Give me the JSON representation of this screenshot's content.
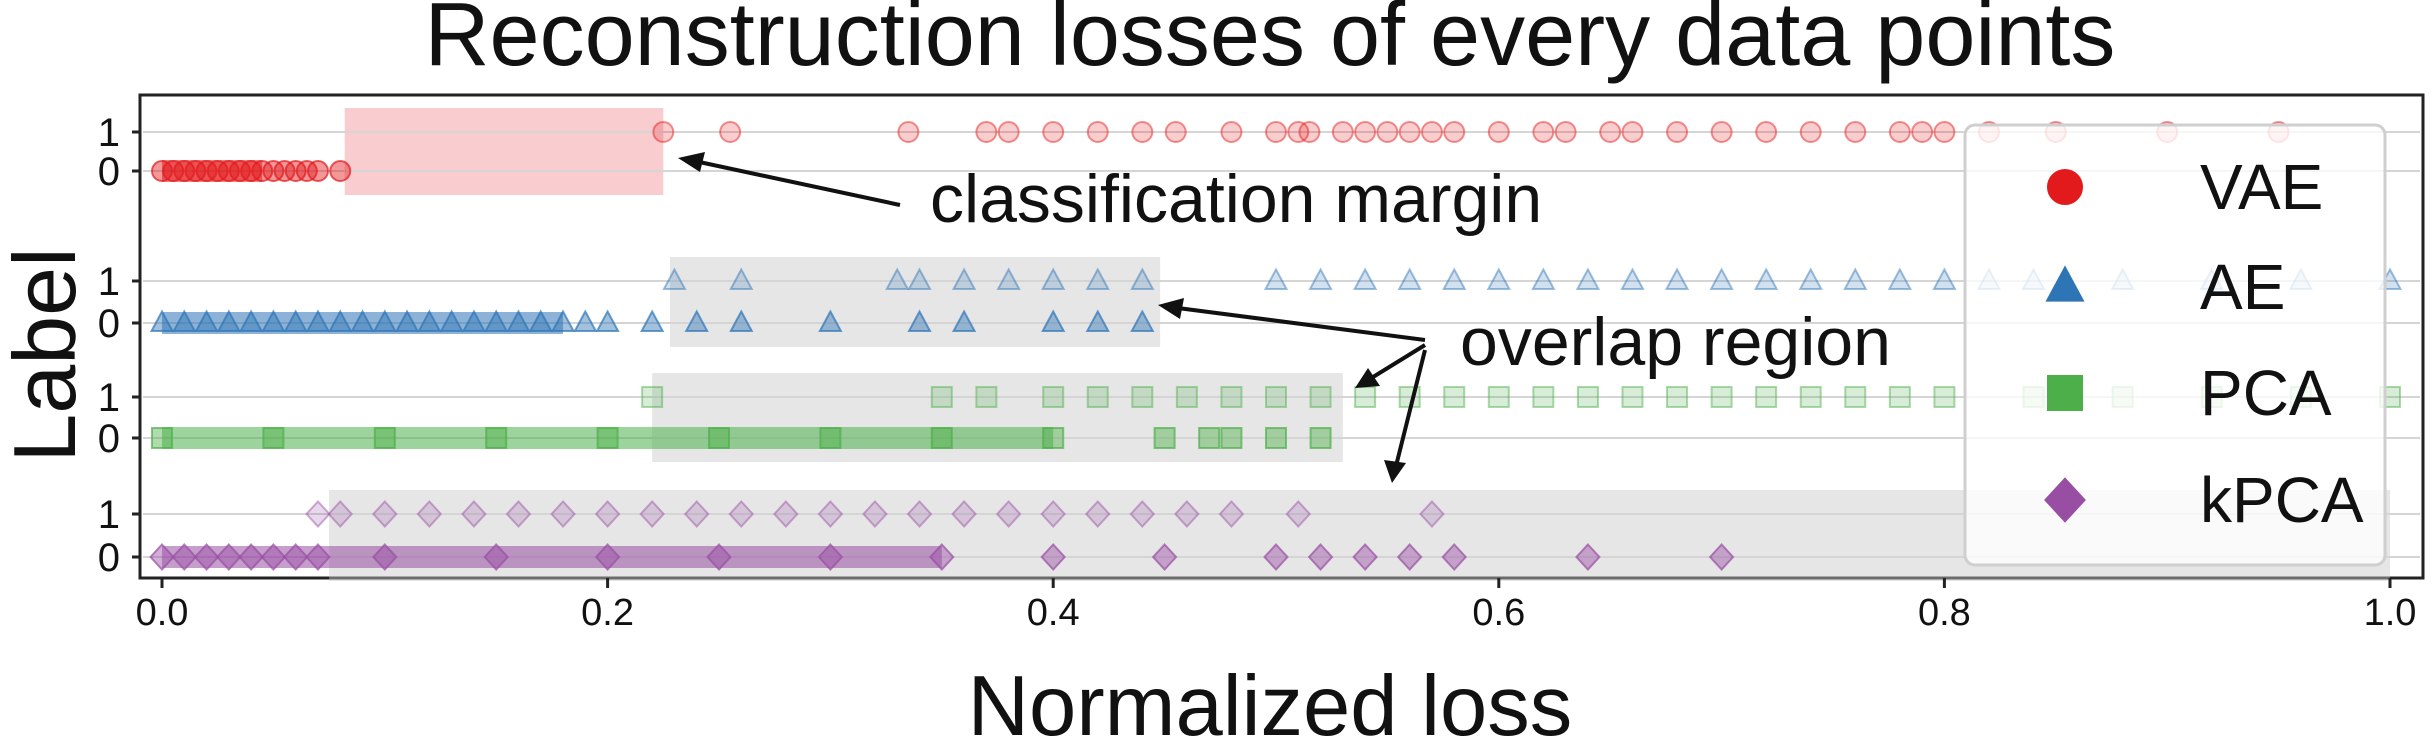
{
  "chart_data": {
    "type": "scatter",
    "title": "Reconstruction losses of every data points",
    "xlabel": "Normalized loss",
    "ylabel": "Label",
    "xlim": [
      0.0,
      1.0
    ],
    "xticks": [
      "0.0",
      "0.2",
      "0.4",
      "0.6",
      "0.8",
      "1.0"
    ],
    "row_ticks": [
      "1",
      "0"
    ],
    "legend_position": "right",
    "grid": "horizontal lines at each label row",
    "series": [
      {
        "name": "VAE",
        "marker": "circle",
        "color": "#e31a1c",
        "label_0_x": [
          0.0,
          0.005,
          0.01,
          0.015,
          0.02,
          0.025,
          0.03,
          0.035,
          0.04,
          0.045,
          0.05,
          0.055,
          0.06,
          0.065,
          0.07,
          0.08
        ],
        "label_1_x": [
          0.225,
          0.255,
          0.335,
          0.37,
          0.38,
          0.4,
          0.42,
          0.44,
          0.455,
          0.48,
          0.5,
          0.51,
          0.515,
          0.53,
          0.54,
          0.55,
          0.56,
          0.57,
          0.58,
          0.6,
          0.62,
          0.63,
          0.65,
          0.66,
          0.68,
          0.7,
          0.72,
          0.74,
          0.76,
          0.78,
          0.79,
          0.8,
          0.82,
          0.85,
          0.9,
          0.95
        ]
      },
      {
        "name": "AE",
        "marker": "triangle",
        "color": "#2e75b6",
        "label_0_x": [
          0.0,
          0.01,
          0.02,
          0.03,
          0.04,
          0.05,
          0.06,
          0.07,
          0.08,
          0.09,
          0.1,
          0.11,
          0.12,
          0.13,
          0.14,
          0.15,
          0.16,
          0.17,
          0.18,
          0.19,
          0.2,
          0.22,
          0.24,
          0.26,
          0.3,
          0.34,
          0.36,
          0.4,
          0.42,
          0.44
        ],
        "label_1_x": [
          0.23,
          0.26,
          0.33,
          0.34,
          0.36,
          0.38,
          0.4,
          0.42,
          0.44,
          0.5,
          0.52,
          0.54,
          0.56,
          0.58,
          0.6,
          0.62,
          0.64,
          0.66,
          0.68,
          0.7,
          0.72,
          0.74,
          0.76,
          0.78,
          0.8,
          0.82,
          0.84,
          0.88,
          0.92,
          0.96,
          1.0
        ]
      },
      {
        "name": "PCA",
        "marker": "square",
        "color": "#4daf4a",
        "label_0_x": [
          0.0,
          0.05,
          0.1,
          0.15,
          0.2,
          0.25,
          0.3,
          0.35,
          0.4,
          0.45,
          0.47,
          0.48,
          0.5,
          0.52
        ],
        "label_1_x": [
          0.22,
          0.35,
          0.37,
          0.4,
          0.42,
          0.44,
          0.46,
          0.48,
          0.5,
          0.52,
          0.54,
          0.56,
          0.58,
          0.6,
          0.62,
          0.64,
          0.66,
          0.68,
          0.7,
          0.72,
          0.74,
          0.76,
          0.78,
          0.8,
          0.84,
          0.88,
          0.92,
          0.96,
          1.0
        ]
      },
      {
        "name": "kPCA",
        "marker": "diamond",
        "color": "#984ea3",
        "label_0_x": [
          0.0,
          0.01,
          0.02,
          0.03,
          0.04,
          0.05,
          0.06,
          0.07,
          0.1,
          0.15,
          0.2,
          0.25,
          0.3,
          0.35,
          0.4,
          0.45,
          0.5,
          0.52,
          0.54,
          0.56,
          0.58,
          0.64,
          0.7
        ],
        "label_1_x": [
          0.07,
          0.08,
          0.1,
          0.12,
          0.14,
          0.16,
          0.18,
          0.2,
          0.22,
          0.24,
          0.26,
          0.28,
          0.3,
          0.32,
          0.34,
          0.36,
          0.38,
          0.4,
          0.42,
          0.44,
          0.46,
          0.48,
          0.51,
          0.57
        ]
      }
    ],
    "regions": [
      {
        "series": "VAE",
        "x": [
          0.082,
          0.225
        ],
        "type": "classification margin"
      },
      {
        "series": "AE",
        "x": [
          0.228,
          0.448
        ],
        "type": "overlap region"
      },
      {
        "series": "PCA",
        "x": [
          0.22,
          0.53
        ],
        "type": "overlap region"
      },
      {
        "series": "kPCA",
        "x": [
          0.075,
          1.0
        ],
        "type": "overlap region"
      }
    ],
    "annotations": [
      {
        "text": "classification margin",
        "target": "VAE"
      },
      {
        "text": "overlap region",
        "target": "AE/PCA/kPCA"
      }
    ]
  }
}
